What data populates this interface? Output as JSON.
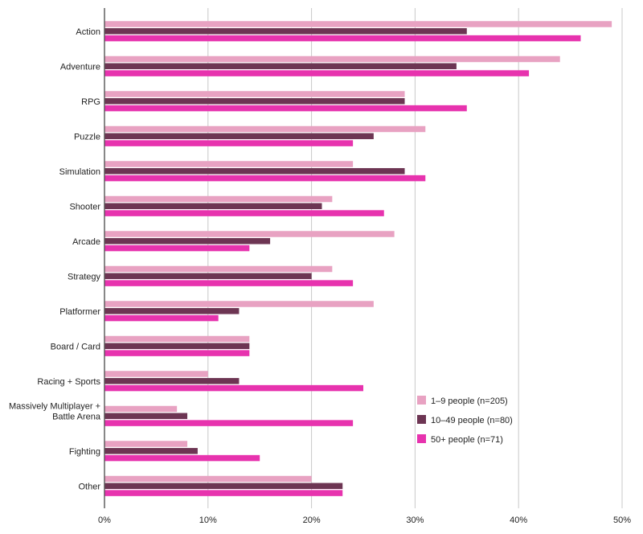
{
  "chart_data": {
    "type": "bar",
    "orientation": "horizontal",
    "title": "",
    "xlabel": "",
    "ylabel": "",
    "xlim": [
      0,
      50
    ],
    "x_ticks": [
      0,
      10,
      20,
      30,
      40,
      50
    ],
    "x_tick_labels": [
      "0%",
      "10%",
      "20%",
      "30%",
      "40%",
      "50%"
    ],
    "grid": true,
    "legend_position": "bottom-right",
    "categories": [
      "Action",
      "Adventure",
      "RPG",
      "Puzzle",
      "Simulation",
      "Shooter",
      "Arcade",
      "Strategy",
      "Platformer",
      "Board / Card",
      "Racing + Sports",
      "Massively Multiplayer +\nBattle Arena",
      "Fighting",
      "Other"
    ],
    "series": [
      {
        "name": "1–9 people (n=205)",
        "color": "#e8a2c2",
        "values": [
          49,
          44,
          29,
          31,
          24,
          22,
          28,
          22,
          26,
          14,
          10,
          7,
          8,
          20
        ]
      },
      {
        "name": "10–49 people (n=80)",
        "color": "#6d3553",
        "values": [
          35,
          34,
          29,
          26,
          29,
          21,
          16,
          20,
          13,
          14,
          13,
          8,
          9,
          23
        ]
      },
      {
        "name": "50+ people (n=71)",
        "color": "#e733ae",
        "values": [
          46,
          41,
          35,
          24,
          31,
          27,
          14,
          24,
          11,
          14,
          25,
          24,
          15,
          23
        ]
      }
    ]
  }
}
